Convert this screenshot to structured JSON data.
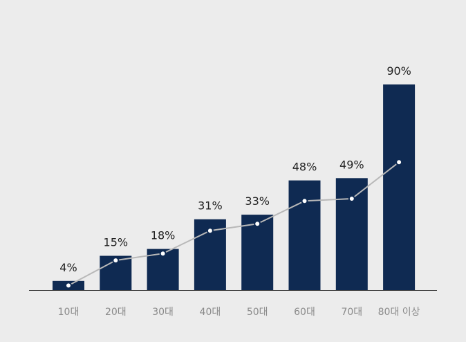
{
  "chart_data": {
    "type": "bar",
    "categories": [
      "10대",
      "20대",
      "30대",
      "40대",
      "50대",
      "60대",
      "70대",
      "80대 이상"
    ],
    "values": [
      4,
      15,
      18,
      31,
      33,
      48,
      49,
      90
    ],
    "value_labels": [
      "4%",
      "15%",
      "18%",
      "31%",
      "33%",
      "48%",
      "49%",
      "90%"
    ],
    "line_values": [
      2,
      13,
      16,
      26,
      29,
      39,
      40,
      56
    ],
    "ylim": [
      0,
      100
    ],
    "grid": false,
    "legend": "none",
    "colors": {
      "bar": "#0f2a52",
      "line": "#b8b8b8",
      "marker_fill": "#ffffff",
      "marker_stroke": "#0f2a52",
      "axis": "#333333",
      "value_text": "#222222",
      "category_text": "#8a8a8a",
      "background": "#ececec"
    }
  }
}
